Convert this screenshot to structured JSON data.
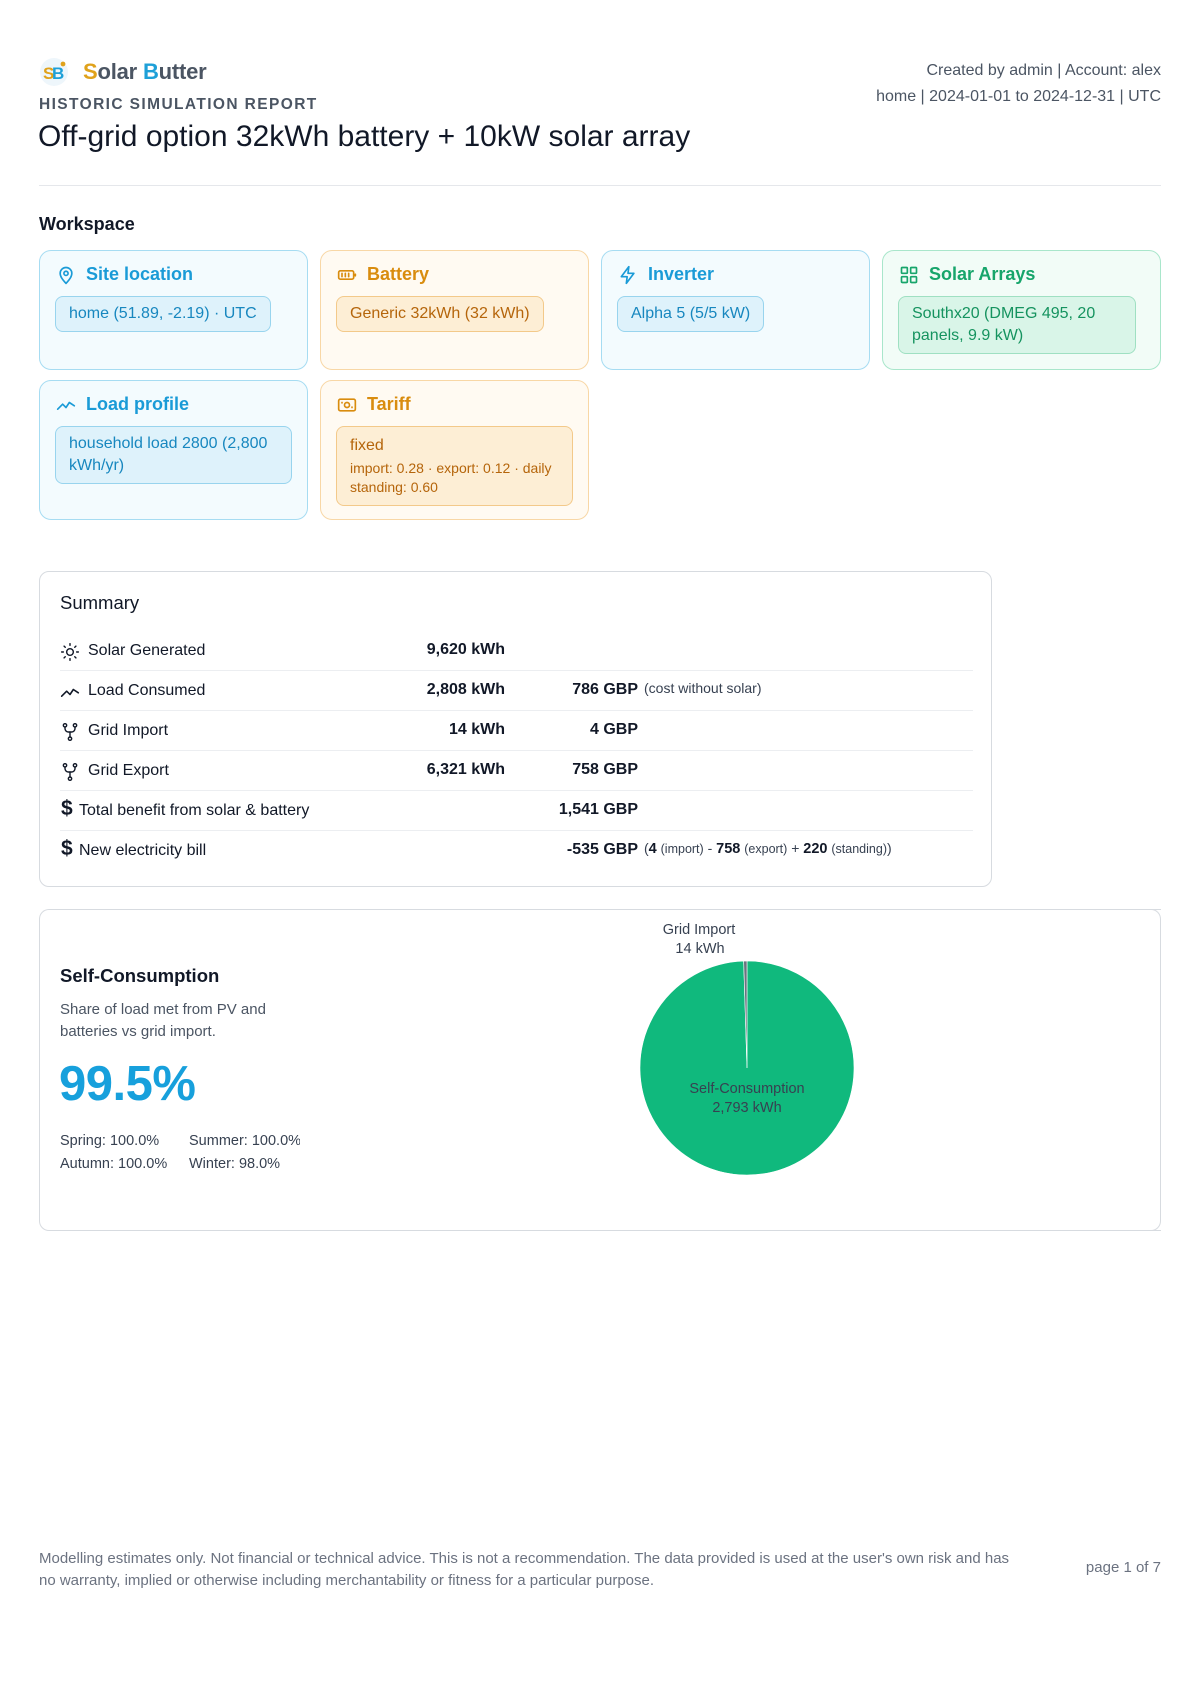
{
  "brand": {
    "name_s": "S",
    "name_olar": "olar ",
    "name_b": "B",
    "name_utter": "utter"
  },
  "header": {
    "report_kind": "HISTORIC SIMULATION REPORT",
    "title": "Off-grid option 32kWh battery + 10kW solar array",
    "meta_line1": "Created by admin | Account: alex",
    "meta_line2": "home | 2024-01-01 to 2024-12-31 | UTC"
  },
  "workspace": {
    "title": "Workspace",
    "site": {
      "label": "Site location",
      "value": "home (51.89, -2.19) · UTC",
      "icon": "map-pin-icon"
    },
    "battery": {
      "label": "Battery",
      "value": "Generic 32kWh (32 kWh)",
      "icon": "battery-icon"
    },
    "inverter": {
      "label": "Inverter",
      "value": "Alpha 5 (5/5 kW)",
      "icon": "lightning-icon"
    },
    "arrays": {
      "label": "Solar Arrays",
      "value": "Southx20 (DMEG 495, 20 panels, 9.9 kW)",
      "icon": "grid-icon"
    },
    "load": {
      "label": "Load profile",
      "value": "household load 2800 (2,800 kWh/yr)",
      "icon": "trend-icon"
    },
    "tariff": {
      "label": "Tariff",
      "value": "fixed",
      "detail": "import: 0.28 · export: 0.12 · daily standing: 0.60",
      "icon": "banknote-icon"
    }
  },
  "summary": {
    "title": "Summary",
    "rows": [
      {
        "label": "Solar Generated",
        "kwh": "9,620 kWh",
        "gbp": "",
        "icon": "sun-icon"
      },
      {
        "label": "Load Consumed",
        "kwh": "2,808 kWh",
        "gbp": "786 GBP",
        "note": "(cost without solar)",
        "icon": "trend-icon"
      },
      {
        "label": "Grid Import",
        "kwh": "14 kWh",
        "gbp": "4 GBP",
        "icon": "fork-icon"
      },
      {
        "label": "Grid Export",
        "kwh": "6,321 kWh",
        "gbp": "758 GBP",
        "icon": "fork-icon"
      },
      {
        "label": "Total benefit from solar & battery",
        "kwh": "",
        "gbp": "1,541 GBP",
        "icon": "dollar-icon"
      },
      {
        "label": "New electricity bill",
        "kwh": "",
        "gbp": "-535 GBP",
        "icon": "dollar-icon",
        "bill": {
          "open": "(",
          "import_val": "4",
          "import_lbl": "(import)",
          "minus": " - ",
          "export_val": "758",
          "export_lbl": "(export)",
          "plus": " + ",
          "standing_val": "220",
          "standing_lbl": "(standing)",
          "close": ")"
        }
      }
    ]
  },
  "self_consumption": {
    "title": "Self-Consumption",
    "description": "Share of load met from PV and batteries vs grid import.",
    "percent": "99.5%",
    "seasons": {
      "spring": "Spring: 100.0%",
      "summer": "Summer: 100.0%",
      "autumn": "Autumn: 100.0%",
      "winter": "Winter: 98.0%"
    }
  },
  "chart_data": {
    "type": "pie",
    "slices": [
      {
        "name": "Self-Consumption",
        "value": 2793,
        "label": "2,793 kWh",
        "color": "#10b97d"
      },
      {
        "name": "Grid Import",
        "value": 14,
        "label": "14 kWh",
        "color": "#6b7280"
      }
    ]
  },
  "footer": {
    "disclaimer": "Modelling estimates only. Not financial or technical advice. This is not a recommendation. The data provided is used at the user's own risk and has no warranty, implied or otherwise including merchantability or fitness for a particular purpose.",
    "page": "page 1 of 7"
  }
}
